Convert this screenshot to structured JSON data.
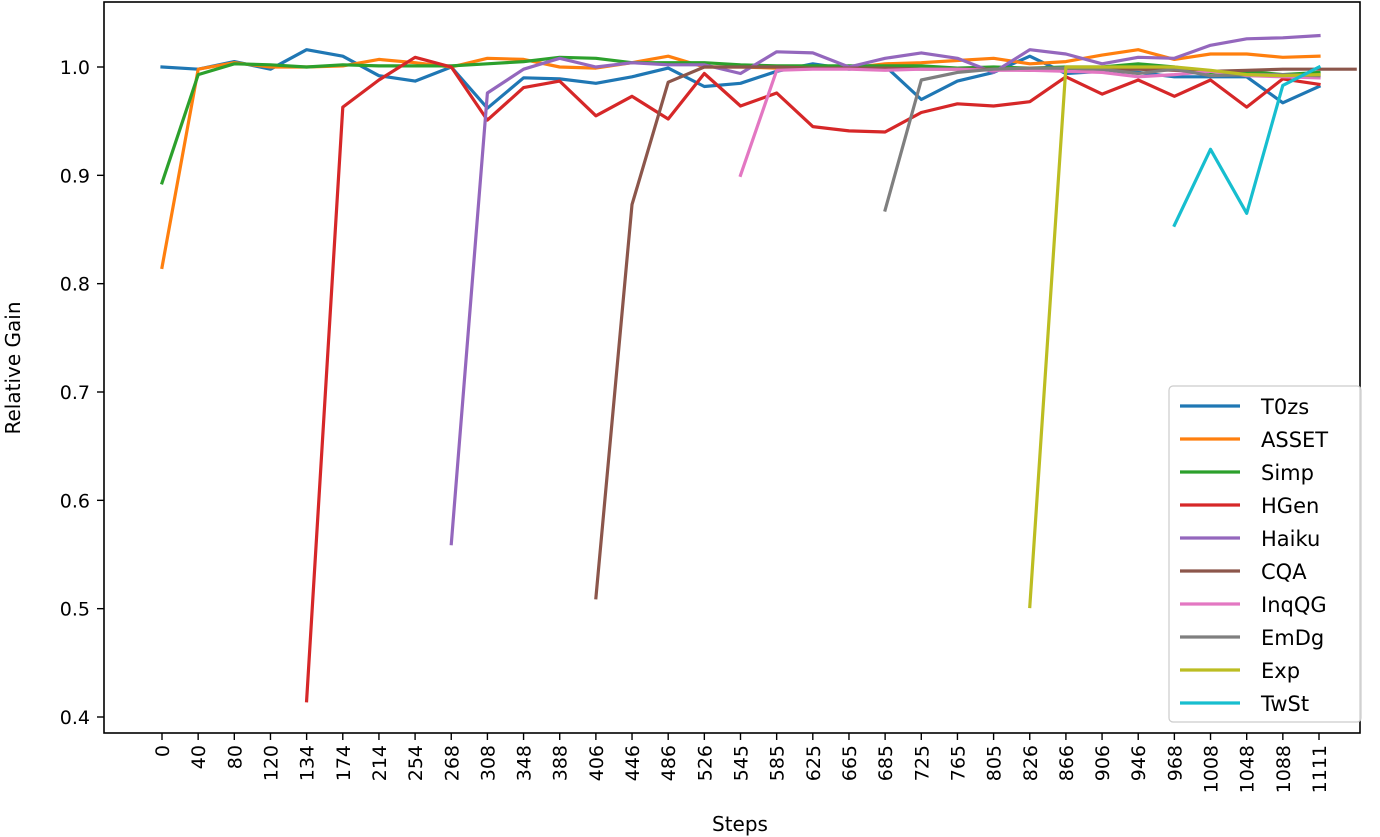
{
  "chart_data": {
    "type": "line",
    "title": "",
    "xlabel": "Steps",
    "ylabel": "Relative Gain",
    "ylim": [
      0.38,
      1.06
    ],
    "yticks": [
      0.4,
      0.5,
      0.6,
      0.7,
      0.8,
      0.9,
      1.0
    ],
    "ytick_labels": [
      "0.4",
      "0.5",
      "0.6",
      "0.7",
      "0.8",
      "0.9",
      "1.0"
    ],
    "grid": false,
    "legend_position": "lower right",
    "categories": [
      "0",
      "40",
      "80",
      "120",
      "134",
      "174",
      "214",
      "254",
      "268",
      "308",
      "348",
      "388",
      "406",
      "446",
      "486",
      "526",
      "545",
      "585",
      "625",
      "665",
      "685",
      "725",
      "765",
      "805",
      "826",
      "866",
      "906",
      "946",
      "968",
      "1008",
      "1048",
      "1088",
      "1111"
    ],
    "series": [
      {
        "name": "T0zs",
        "color": "#1f77b4",
        "start": 0,
        "values": [
          1.0,
          0.998,
          1.005,
          0.998,
          1.016,
          1.01,
          0.992,
          0.987,
          1.0,
          0.962,
          0.99,
          0.989,
          0.985,
          0.991,
          0.999,
          0.982,
          0.985,
          0.996,
          1.003,
          0.998,
          1.001,
          0.97,
          0.987,
          0.995,
          1.01,
          0.994,
          0.996,
          0.995,
          0.991,
          0.991,
          0.991,
          0.967,
          0.982
        ]
      },
      {
        "name": "ASSET",
        "color": "#ff7f0e",
        "start": 0,
        "values": [
          0.815,
          0.998,
          1.004,
          1.0,
          1.0,
          1.001,
          1.007,
          1.004,
          1.0,
          1.008,
          1.007,
          1.0,
          0.999,
          1.004,
          1.01,
          1.0,
          1.0,
          0.999,
          0.999,
          0.999,
          1.003,
          1.004,
          1.006,
          1.008,
          1.003,
          1.005,
          1.011,
          1.016,
          1.007,
          1.012,
          1.012,
          1.009,
          1.01
        ]
      },
      {
        "name": "Simp",
        "color": "#2ca02c",
        "start": 0,
        "values": [
          0.893,
          0.993,
          1.003,
          1.002,
          1.0,
          1.002,
          1.001,
          1.001,
          1.001,
          1.003,
          1.005,
          1.009,
          1.008,
          1.004,
          1.004,
          1.004,
          1.002,
          1.001,
          1.001,
          1.001,
          1.001,
          1.001,
          0.999,
          1.0,
          0.999,
          1.0,
          1.0,
          1.003,
          1.0,
          0.995,
          0.996,
          0.993,
          0.995
        ]
      },
      {
        "name": "HGen",
        "color": "#d62728",
        "start": 4,
        "values": [
          0.415,
          0.963,
          0.988,
          1.009,
          1.0,
          0.951,
          0.981,
          0.987,
          0.955,
          0.973,
          0.952,
          0.994,
          0.964,
          0.976,
          0.945,
          0.941,
          0.94,
          0.958,
          0.966,
          0.964,
          0.968,
          0.991,
          0.975,
          0.988,
          0.973,
          0.988,
          0.963,
          0.989,
          0.984
        ]
      },
      {
        "name": "Haiku",
        "color": "#9467bd",
        "start": 8,
        "values": [
          0.56,
          0.976,
          0.998,
          1.008,
          1.0,
          1.004,
          1.002,
          1.002,
          0.994,
          1.014,
          1.013,
          1.0,
          1.008,
          1.013,
          1.008,
          0.995,
          1.016,
          1.012,
          1.003,
          1.009,
          1.008,
          1.02,
          1.026,
          1.027,
          1.029
        ]
      },
      {
        "name": "CQA",
        "color": "#8c564b",
        "start": 12,
        "values": [
          0.51,
          0.873,
          0.986,
          1.0,
          1.0,
          1.0,
          0.999,
          0.999,
          0.999,
          0.998,
          0.998,
          0.998,
          0.997,
          0.998,
          0.998,
          0.998,
          0.997,
          0.996,
          0.997,
          0.998,
          0.998,
          0.998
        ]
      },
      {
        "name": "InqQG",
        "color": "#e377c2",
        "start": 16,
        "values": [
          0.9,
          0.997,
          0.998,
          0.998,
          0.997,
          0.998,
          0.998,
          0.997,
          0.997,
          0.996,
          0.995,
          0.991,
          0.993,
          0.996,
          0.992,
          0.991,
          0.99
        ]
      },
      {
        "name": "EmDg",
        "color": "#7f7f7f",
        "start": 20,
        "values": [
          0.868,
          0.988,
          0.995,
          0.998,
          0.999,
          0.999,
          0.998,
          0.994,
          0.998,
          0.992,
          0.993,
          0.993,
          0.992
        ]
      },
      {
        "name": "Exp",
        "color": "#bcbd22",
        "start": 24,
        "values": [
          0.502,
          1.0,
          1.0,
          1.0,
          1.0,
          0.997,
          0.993,
          0.992,
          0.993
        ]
      },
      {
        "name": "TwSt",
        "color": "#17becf",
        "start": 28,
        "values": [
          0.854,
          0.924,
          0.865,
          0.983,
          1.0
        ]
      }
    ]
  }
}
